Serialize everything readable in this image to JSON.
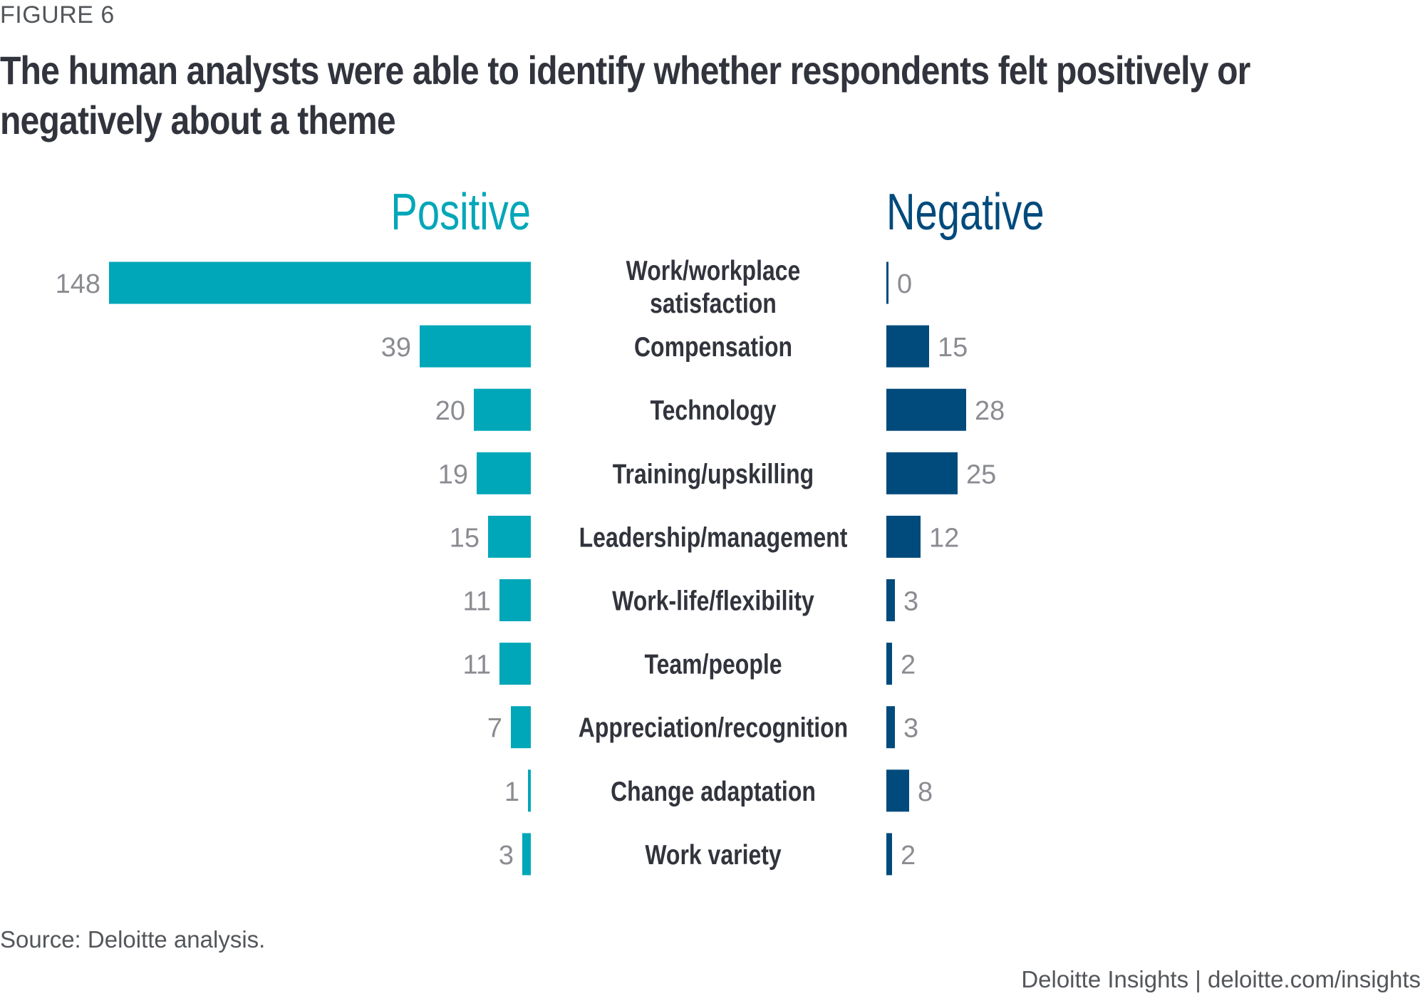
{
  "figure_label": "FIGURE 6",
  "title": "The human analysts were able to identify whether respondents felt positively or negatively about a theme",
  "source": "Source: Deloitte analysis.",
  "brand": "Deloitte Insights | deloitte.com/insights",
  "colors": {
    "positive": "#00a7b8",
    "negative": "#004a7c",
    "label": "#32343d",
    "value": "#8a8c91"
  },
  "chart_data": {
    "type": "bar",
    "orientation": "horizontal-diverging",
    "title": "The human analysts were able to identify whether respondents felt positively or negatively about a theme",
    "categories": [
      "Work/workplace satisfaction",
      "Compensation",
      "Technology",
      "Training/upskilling",
      "Leadership/management",
      "Work-life/flexibility",
      "Team/people",
      "Appreciation/recognition",
      "Change adaptation",
      "Work variety"
    ],
    "category_lines": [
      [
        "Work/workplace",
        "satisfaction"
      ],
      [
        "Compensation"
      ],
      [
        "Technology"
      ],
      [
        "Training/upskilling"
      ],
      [
        "Leadership/management"
      ],
      [
        "Work-life/flexibility"
      ],
      [
        "Team/people"
      ],
      [
        "Appreciation/recognition"
      ],
      [
        "Change adaptation"
      ],
      [
        "Work variety"
      ]
    ],
    "series": [
      {
        "name": "Positive",
        "values": [
          148,
          39,
          20,
          19,
          15,
          11,
          11,
          7,
          1,
          3
        ]
      },
      {
        "name": "Negative",
        "values": [
          0,
          15,
          28,
          25,
          12,
          3,
          2,
          3,
          8,
          2
        ]
      }
    ],
    "xlabel": "",
    "ylabel": "",
    "grid": false,
    "legend": "column headers above bars"
  }
}
